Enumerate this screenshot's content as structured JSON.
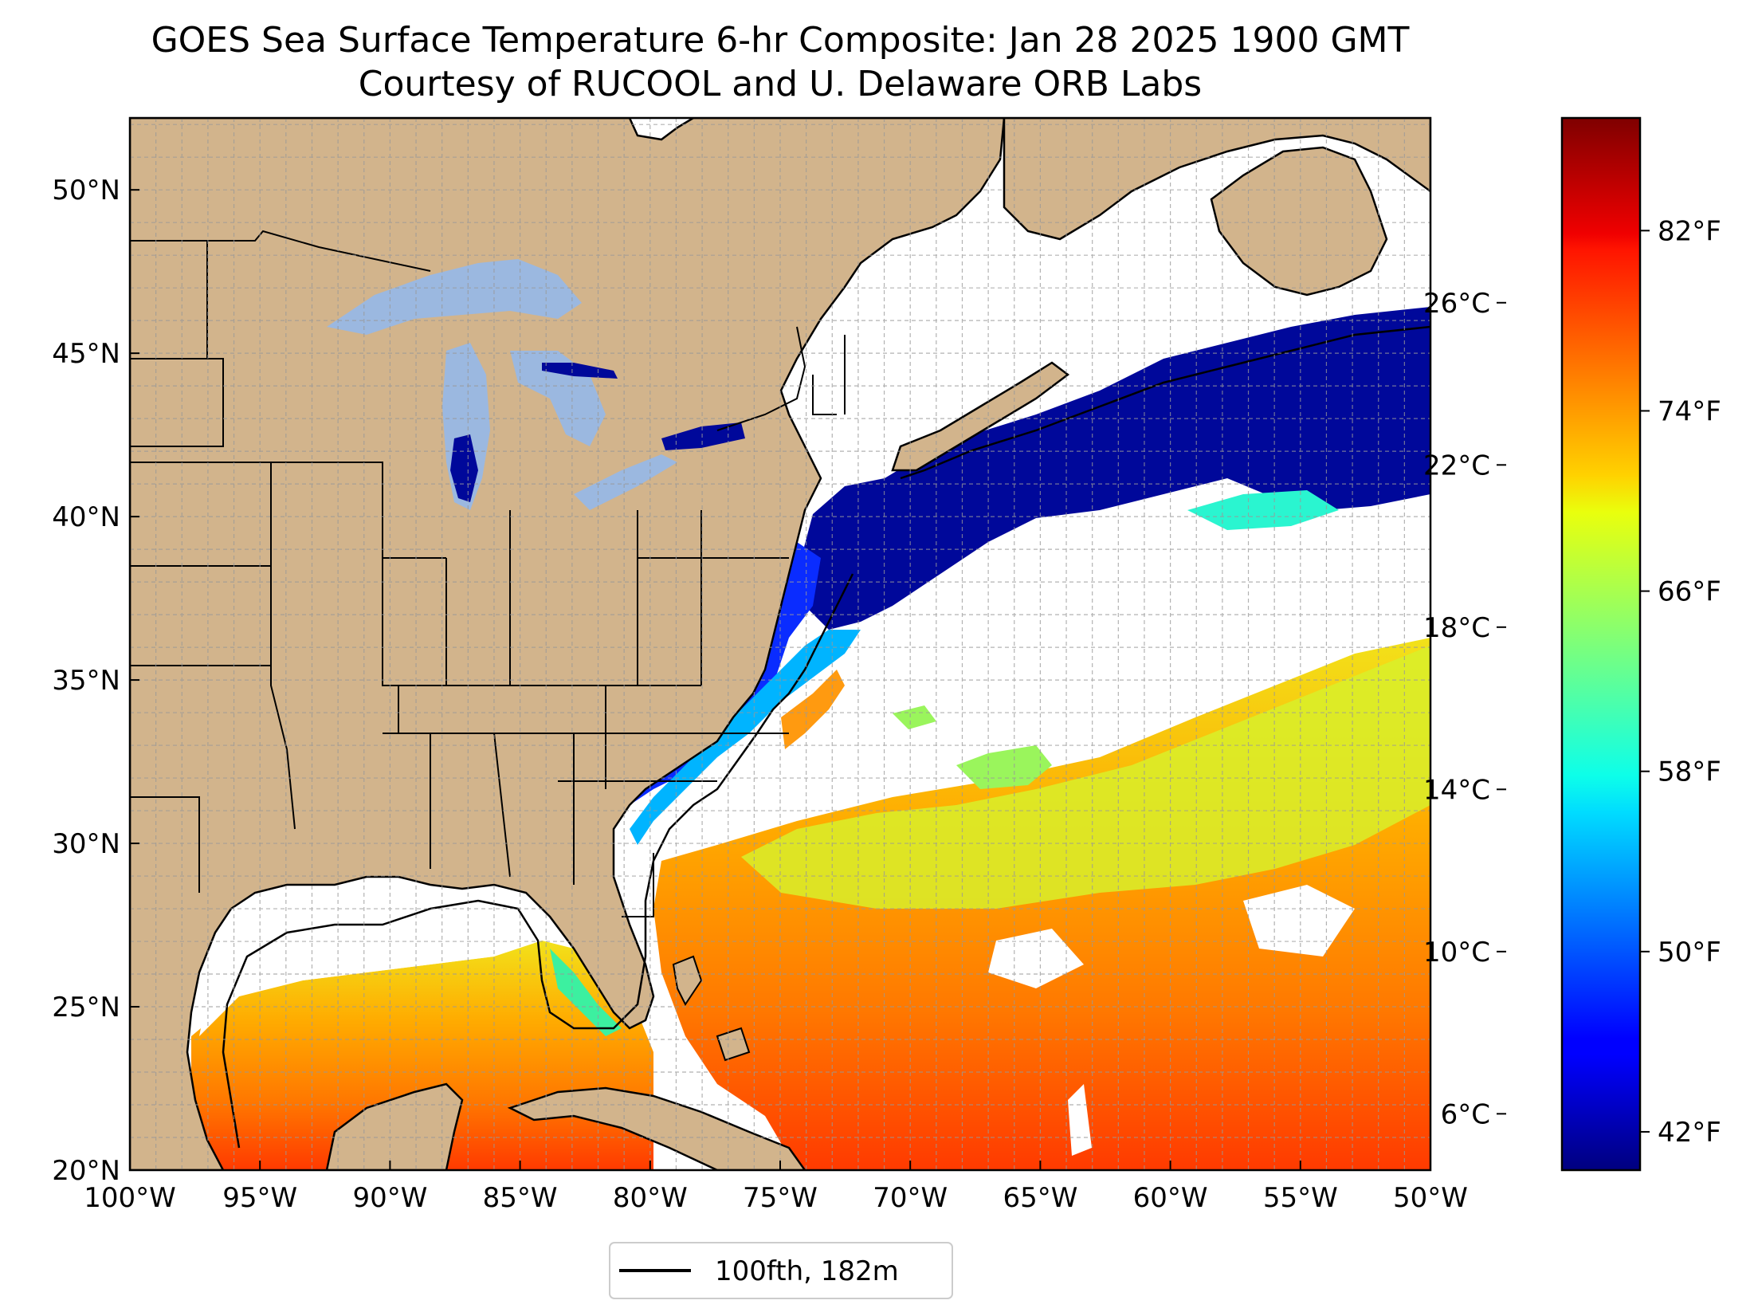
{
  "title": {
    "line1": "GOES Sea Surface Temperature 6-hr Composite: Jan 28 2025 1900 GMT",
    "line2": "Courtesy of RUCOOL and U. Delaware ORB Labs"
  },
  "map": {
    "lon_range": [
      -100,
      -50
    ],
    "lat_range": [
      20,
      52.2
    ],
    "lon_ticks": [
      {
        "value": -100,
        "label": "100°W"
      },
      {
        "value": -95,
        "label": "95°W"
      },
      {
        "value": -90,
        "label": "90°W"
      },
      {
        "value": -85,
        "label": "85°W"
      },
      {
        "value": -80,
        "label": "80°W"
      },
      {
        "value": -75,
        "label": "75°W"
      },
      {
        "value": -70,
        "label": "70°W"
      },
      {
        "value": -65,
        "label": "65°W"
      },
      {
        "value": -60,
        "label": "60°W"
      },
      {
        "value": -55,
        "label": "55°W"
      },
      {
        "value": -50,
        "label": "50°W"
      }
    ],
    "lat_ticks": [
      {
        "value": 20,
        "label": "20°N"
      },
      {
        "value": 25,
        "label": "25°N"
      },
      {
        "value": 30,
        "label": "30°N"
      },
      {
        "value": 35,
        "label": "35°N"
      },
      {
        "value": 40,
        "label": "40°N"
      },
      {
        "value": 45,
        "label": "45°N"
      },
      {
        "value": 50,
        "label": "50°N"
      }
    ],
    "gridlines": "dashed, every 1 degree",
    "colors": {
      "land": "#d2b48c",
      "lakes": "#9bb8e0",
      "no_data": "#ffffff",
      "coast": "#000000"
    }
  },
  "legend": {
    "label": "100fth, 182m",
    "location": "bottom-center"
  },
  "colorbar": {
    "colormap": "jet",
    "fahrenheit_ticks": [
      {
        "value": 42,
        "label": "42°F"
      },
      {
        "value": 50,
        "label": "50°F"
      },
      {
        "value": 58,
        "label": "58°F"
      },
      {
        "value": 66,
        "label": "66°F"
      },
      {
        "value": 74,
        "label": "74°F"
      },
      {
        "value": 82,
        "label": "82°F"
      }
    ],
    "celsius_ticks": [
      {
        "value": 6,
        "label": "6°C"
      },
      {
        "value": 10,
        "label": "10°C"
      },
      {
        "value": 14,
        "label": "14°C"
      },
      {
        "value": 18,
        "label": "18°C"
      },
      {
        "value": 22,
        "label": "22°C"
      },
      {
        "value": 26,
        "label": "26°C"
      }
    ],
    "range_f": [
      40.3,
      87.0
    ]
  }
}
